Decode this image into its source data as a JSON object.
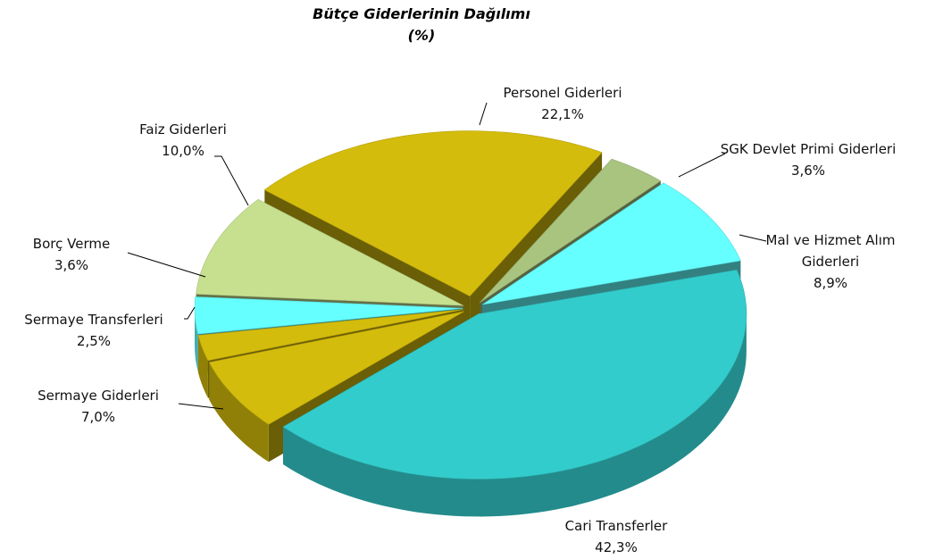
{
  "chart_data": {
    "type": "pie",
    "title": "Bütçe Giderlerinin Dağılımı",
    "subtitle": "(%)",
    "categories": [
      "Personel Giderleri",
      "SGK Devlet Primi Giderleri",
      "Mal ve Hizmet Alım Giderleri",
      "Cari Transferler",
      "Sermaye Giderleri",
      "Sermaye Transferleri",
      "Borç Verme",
      "Faiz Giderleri"
    ],
    "values": [
      22.1,
      3.6,
      8.9,
      42.3,
      7.0,
      2.5,
      3.6,
      10.0
    ],
    "value_labels": [
      "22,1%",
      "3,6%",
      "8,9%",
      "42,3%",
      "7,0%",
      "2,5%",
      "3,6%",
      "10,0%"
    ],
    "colors": [
      "#d4bc0c",
      "#a9c47f",
      "#66ffff",
      "#33cccc",
      "#d4bc0c",
      "#d4bc0c",
      "#66ffff",
      "#c6e08f"
    ]
  }
}
